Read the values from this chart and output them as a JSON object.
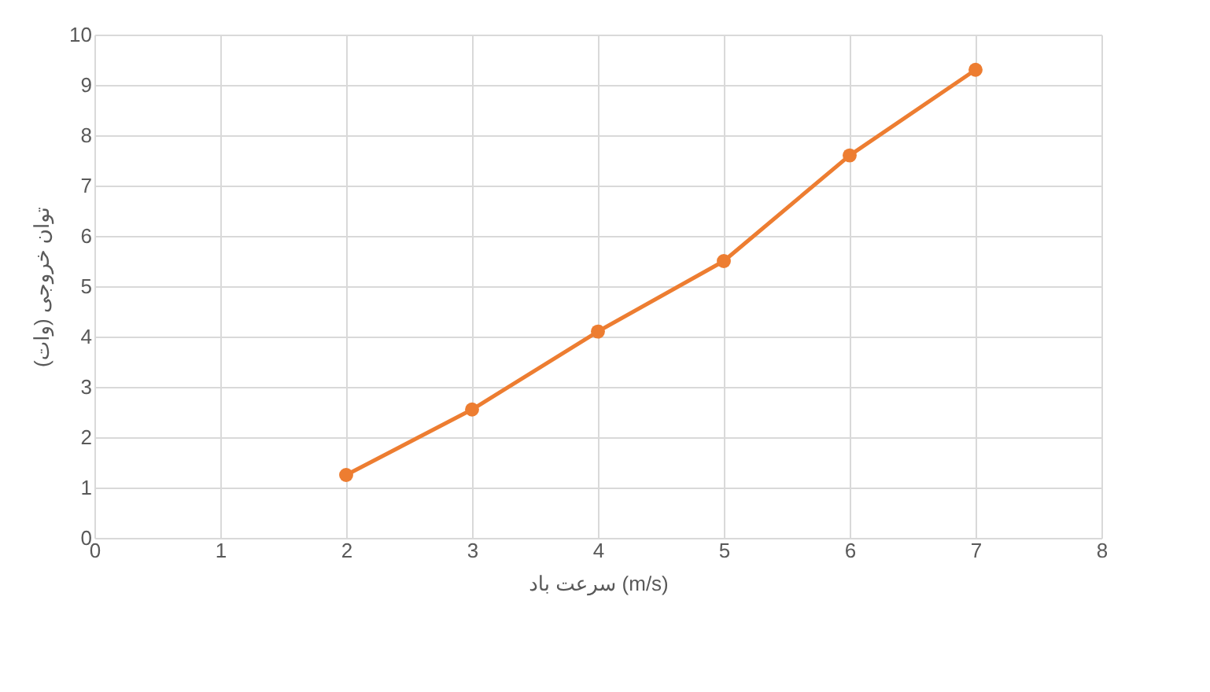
{
  "chart_data": {
    "type": "line",
    "xlabel": "سرعت باد (m/s)",
    "ylabel": "توان خروجی (وات)",
    "x": [
      2,
      3,
      4,
      5,
      6,
      7
    ],
    "series": [
      {
        "color": "#ed7d31",
        "values": [
          1.25,
          2.55,
          4.1,
          5.5,
          7.6,
          9.3
        ]
      }
    ],
    "xlim": [
      0,
      8
    ],
    "xticks": [
      0,
      1,
      2,
      3,
      4,
      5,
      6,
      7,
      8
    ],
    "ylim": [
      0,
      10
    ],
    "yticks": [
      0,
      1,
      2,
      3,
      4,
      5,
      6,
      7,
      8,
      9,
      10
    ],
    "grid": true,
    "marker": "circle",
    "line_style": "solid"
  }
}
